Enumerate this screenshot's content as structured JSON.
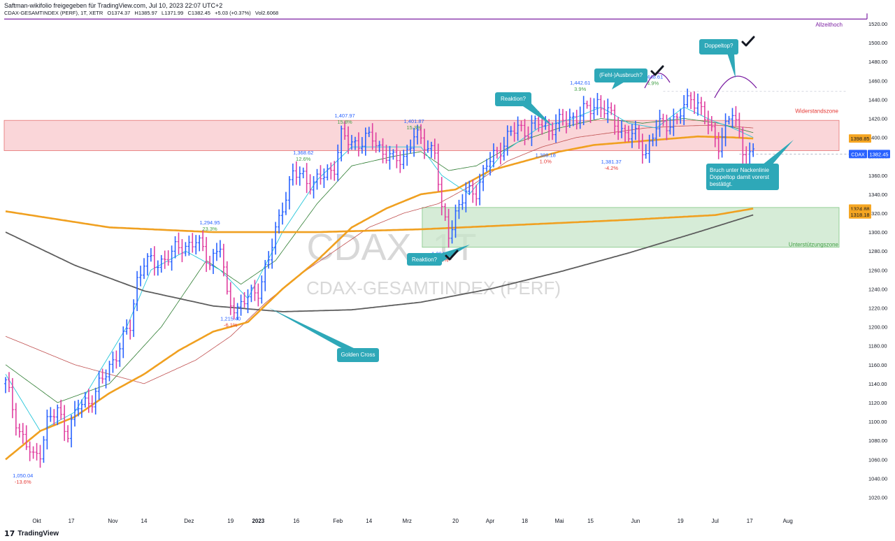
{
  "header": {
    "publisher": "Saftman-wikifolio freigegeben für TradingView.com, Jul 10, 2023 22:07 UTC+2",
    "symbol": "CDAX-GESAMTINDEX (PERF), 1T, XETR",
    "open": "O1374.37",
    "high": "H1385.97",
    "low": "L1371.99",
    "close": "C1382.45",
    "change": "+5.03 (+0.37%)",
    "vol": "Vol2.6068"
  },
  "watermark": {
    "big": "CDAX, 1T",
    "small": "CDAX-GESAMTINDEX (PERF)"
  },
  "footer": {
    "brand": "TradingView"
  },
  "colors": {
    "up": "#2962ff",
    "down": "#e040a0",
    "ema200": "#f0a020",
    "sma200": "#5d5d5d",
    "ma_red": "#c05050",
    "ma_green": "#2e7d32",
    "ma_cyan": "#26c6da",
    "resistance_fill": "#f8c8cc",
    "support_fill": "#c8e6c9",
    "callout": "#2ea8b8"
  },
  "chart_data": {
    "type": "ohlc",
    "title": "CDAX-GESAMTINDEX (PERF), 1T, XETR",
    "ylim": [
      1000,
      1530
    ],
    "price_axis_ticks": [
      1020,
      1040,
      1060,
      1080,
      1100,
      1120,
      1140,
      1160,
      1180,
      1200,
      1220,
      1240,
      1260,
      1280,
      1300,
      1320,
      1340,
      1360,
      1380,
      1400,
      1420,
      1440,
      1460,
      1480,
      1500,
      1520
    ],
    "time_axis": [
      {
        "label": "Okt",
        "bar": 9
      },
      {
        "label": "17",
        "bar": 19
      },
      {
        "label": "Nov",
        "bar": 31
      },
      {
        "label": "14",
        "bar": 40
      },
      {
        "label": "Dez",
        "bar": 53
      },
      {
        "label": "19",
        "bar": 65
      },
      {
        "label": "2023",
        "bar": 73
      },
      {
        "label": "16",
        "bar": 84
      },
      {
        "label": "Feb",
        "bar": 96
      },
      {
        "label": "14",
        "bar": 105
      },
      {
        "label": "Mrz",
        "bar": 116
      },
      {
        "label": "20",
        "bar": 130
      },
      {
        "label": "Apr",
        "bar": 140
      },
      {
        "label": "18",
        "bar": 150
      },
      {
        "label": "Mai",
        "bar": 160
      },
      {
        "label": "15",
        "bar": 169
      },
      {
        "label": "Jun",
        "bar": 182
      },
      {
        "label": "19",
        "bar": 195
      },
      {
        "label": "Jul",
        "bar": 205
      },
      {
        "label": "17",
        "bar": 215
      },
      {
        "label": "Aug",
        "bar": 226
      }
    ],
    "close_path": [
      [
        0,
        1140
      ],
      [
        4,
        1090
      ],
      [
        8,
        1060
      ],
      [
        10,
        1070
      ],
      [
        12,
        1100
      ],
      [
        15,
        1110
      ],
      [
        18,
        1090
      ],
      [
        21,
        1115
      ],
      [
        25,
        1125
      ],
      [
        29,
        1150
      ],
      [
        33,
        1180
      ],
      [
        36,
        1200
      ],
      [
        38,
        1250
      ],
      [
        40,
        1270
      ],
      [
        43,
        1265
      ],
      [
        47,
        1275
      ],
      [
        51,
        1285
      ],
      [
        55,
        1290
      ],
      [
        59,
        1270
      ],
      [
        62,
        1285
      ],
      [
        64,
        1230
      ],
      [
        67,
        1220
      ],
      [
        70,
        1230
      ],
      [
        73,
        1240
      ],
      [
        76,
        1270
      ],
      [
        78,
        1300
      ],
      [
        80,
        1330
      ],
      [
        83,
        1360
      ],
      [
        86,
        1360
      ],
      [
        89,
        1350
      ],
      [
        92,
        1360
      ],
      [
        95,
        1370
      ],
      [
        97,
        1400
      ],
      [
        100,
        1395
      ],
      [
        103,
        1395
      ],
      [
        106,
        1400
      ],
      [
        109,
        1385
      ],
      [
        112,
        1375
      ],
      [
        115,
        1380
      ],
      [
        118,
        1400
      ],
      [
        121,
        1395
      ],
      [
        124,
        1385
      ],
      [
        126,
        1320
      ],
      [
        128,
        1300
      ],
      [
        130,
        1320
      ],
      [
        133,
        1340
      ],
      [
        136,
        1345
      ],
      [
        139,
        1370
      ],
      [
        142,
        1385
      ],
      [
        145,
        1400
      ],
      [
        148,
        1410
      ],
      [
        151,
        1408
      ],
      [
        154,
        1415
      ],
      [
        157,
        1410
      ],
      [
        160,
        1415
      ],
      [
        163,
        1420
      ],
      [
        166,
        1425
      ],
      [
        169,
        1430
      ],
      [
        171,
        1438
      ],
      [
        173,
        1430
      ],
      [
        176,
        1415
      ],
      [
        179,
        1405
      ],
      [
        182,
        1400
      ],
      [
        185,
        1385
      ],
      [
        188,
        1410
      ],
      [
        191,
        1415
      ],
      [
        194,
        1420
      ],
      [
        196,
        1430
      ],
      [
        198,
        1445
      ],
      [
        200,
        1435
      ],
      [
        202,
        1420
      ],
      [
        204,
        1405
      ],
      [
        206,
        1395
      ],
      [
        208,
        1410
      ],
      [
        210,
        1425
      ],
      [
        212,
        1405
      ],
      [
        214,
        1375
      ],
      [
        216,
        1382
      ]
    ],
    "indicators": {
      "ema200": [
        [
          0,
          1322
        ],
        [
          30,
          1305
        ],
        [
          60,
          1300
        ],
        [
          90,
          1300
        ],
        [
          120,
          1303
        ],
        [
          150,
          1308
        ],
        [
          180,
          1313
        ],
        [
          205,
          1318
        ],
        [
          216,
          1324.88
        ]
      ],
      "sma200": [
        [
          0,
          1300
        ],
        [
          20,
          1265
        ],
        [
          40,
          1238
        ],
        [
          60,
          1222
        ],
        [
          80,
          1216
        ],
        [
          100,
          1218
        ],
        [
          120,
          1226
        ],
        [
          140,
          1240
        ],
        [
          160,
          1258
        ],
        [
          180,
          1278
        ],
        [
          200,
          1300
        ],
        [
          216,
          1318.18
        ]
      ],
      "ema50": [
        [
          0,
          1060
        ],
        [
          5,
          1075
        ],
        [
          10,
          1090
        ],
        [
          20,
          1105
        ],
        [
          30,
          1130
        ],
        [
          40,
          1150
        ],
        [
          50,
          1175
        ],
        [
          60,
          1195
        ],
        [
          70,
          1205
        ],
        [
          80,
          1240
        ],
        [
          90,
          1270
        ],
        [
          100,
          1305
        ],
        [
          110,
          1325
        ],
        [
          120,
          1340
        ],
        [
          130,
          1345
        ],
        [
          140,
          1365
        ],
        [
          150,
          1375
        ],
        [
          160,
          1385
        ],
        [
          170,
          1392
        ],
        [
          180,
          1395
        ],
        [
          190,
          1398
        ],
        [
          200,
          1401
        ],
        [
          210,
          1400
        ],
        [
          216,
          1398.85
        ]
      ],
      "ma_red": [
        [
          0,
          1190
        ],
        [
          20,
          1160
        ],
        [
          40,
          1140
        ],
        [
          55,
          1165
        ],
        [
          65,
          1190
        ],
        [
          75,
          1225
        ],
        [
          85,
          1255
        ],
        [
          95,
          1280
        ],
        [
          105,
          1305
        ],
        [
          115,
          1320
        ],
        [
          125,
          1330
        ],
        [
          135,
          1350
        ],
        [
          145,
          1375
        ],
        [
          155,
          1390
        ],
        [
          165,
          1400
        ],
        [
          175,
          1405
        ],
        [
          185,
          1410
        ],
        [
          195,
          1412
        ],
        [
          205,
          1413
        ],
        [
          216,
          1410
        ]
      ],
      "ma_green": [
        [
          0,
          1160
        ],
        [
          15,
          1120
        ],
        [
          30,
          1140
        ],
        [
          45,
          1200
        ],
        [
          58,
          1270
        ],
        [
          68,
          1245
        ],
        [
          78,
          1270
        ],
        [
          90,
          1330
        ],
        [
          100,
          1370
        ],
        [
          112,
          1380
        ],
        [
          120,
          1385
        ],
        [
          128,
          1365
        ],
        [
          136,
          1370
        ],
        [
          148,
          1395
        ],
        [
          160,
          1410
        ],
        [
          172,
          1420
        ],
        [
          184,
          1415
        ],
        [
          196,
          1420
        ],
        [
          206,
          1415
        ],
        [
          216,
          1405
        ]
      ],
      "ma_cyan": [
        [
          0,
          1150
        ],
        [
          10,
          1090
        ],
        [
          20,
          1110
        ],
        [
          35,
          1200
        ],
        [
          42,
          1260
        ],
        [
          52,
          1280
        ],
        [
          62,
          1260
        ],
        [
          70,
          1230
        ],
        [
          80,
          1300
        ],
        [
          90,
          1355
        ],
        [
          100,
          1390
        ],
        [
          110,
          1390
        ],
        [
          120,
          1390
        ],
        [
          126,
          1360
        ],
        [
          134,
          1340
        ],
        [
          144,
          1385
        ],
        [
          154,
          1410
        ],
        [
          164,
          1420
        ],
        [
          172,
          1432
        ],
        [
          180,
          1415
        ],
        [
          188,
          1410
        ],
        [
          196,
          1432
        ],
        [
          204,
          1418
        ],
        [
          210,
          1410
        ],
        [
          216,
          1400
        ]
      ]
    },
    "zones": [
      {
        "name": "Widerstandszone",
        "from": 1386,
        "to": 1418,
        "label_price": 1426
      },
      {
        "name": "Unterstützungszone",
        "from": 1284,
        "to": 1326,
        "label_price": 1276,
        "start_bar": 122
      }
    ],
    "levels": [
      {
        "label": "Allzeithoch",
        "price": 1525
      },
      {
        "label": "1398.85",
        "price": 1398.85
      },
      {
        "label": "1324.88",
        "price": 1324.88
      },
      {
        "label": "1318.18",
        "price": 1318.18
      }
    ],
    "last_price": {
      "symbol": "CDAX",
      "value": "1382.45",
      "price": 1382.45
    },
    "swing_labels": [
      {
        "bar": 5,
        "price": 1050.04,
        "value": "1,050.04",
        "pct": "-13.6%",
        "pos": "below",
        "pct_color": "#e53935"
      },
      {
        "bar": 59,
        "price": 1294.95,
        "value": "1,294.95",
        "pct": "23.3%",
        "pos": "above",
        "pct_color": "#43a047"
      },
      {
        "bar": 65,
        "price": 1215.4,
        "value": "1,215.40",
        "pct": "-6.1%",
        "pos": "below",
        "pct_color": "#e53935"
      },
      {
        "bar": 86,
        "price": 1368.62,
        "value": "1,368.62",
        "pct": "12.6%",
        "pos": "above",
        "pct_color": "#43a047"
      },
      {
        "bar": 98,
        "price": 1407.97,
        "value": "1,407.97",
        "pct": "15.8%",
        "pos": "above",
        "pct_color": "#43a047"
      },
      {
        "bar": 118,
        "price": 1401.87,
        "value": "1,401.87",
        "pct": "15.3%",
        "pos": "above",
        "pct_color": "#43a047"
      },
      {
        "bar": 126,
        "price": 1284.17,
        "value": "1,284.17",
        "pct": "-8.4%",
        "pos": "below",
        "pct_color": "#e53935"
      },
      {
        "bar": 156,
        "price": 1388.18,
        "value": "1,388.18",
        "pct": "1.0%",
        "pos": "below",
        "pct_color": "#e53935"
      },
      {
        "bar": 166,
        "price": 1442.61,
        "value": "1,442.61",
        "pct": "3.9%",
        "pos": "above",
        "pct_color": "#43a047"
      },
      {
        "bar": 175,
        "price": 1381.37,
        "value": "1,381.37",
        "pct": "-4.2%",
        "pos": "below",
        "pct_color": "#e53935"
      },
      {
        "bar": 187,
        "price": 1448.61,
        "value": "1,448.61",
        "pct": "4.9%",
        "pos": "above",
        "pct_color": "#43a047"
      }
    ],
    "annotations": [
      {
        "text": "Reaktion?",
        "check": false
      },
      {
        "text": "(Fehl-)Ausbruch?",
        "check": true
      },
      {
        "text": "Doppeltop?",
        "check": true
      },
      {
        "text": "Reaktion?",
        "check": true
      },
      {
        "text": "Golden Cross",
        "check": false
      },
      {
        "text": "Bruch unter Nackenlinie Doppeltop damit vorerst bestätigt.",
        "check": false
      }
    ],
    "grid": false,
    "legend": "none"
  }
}
